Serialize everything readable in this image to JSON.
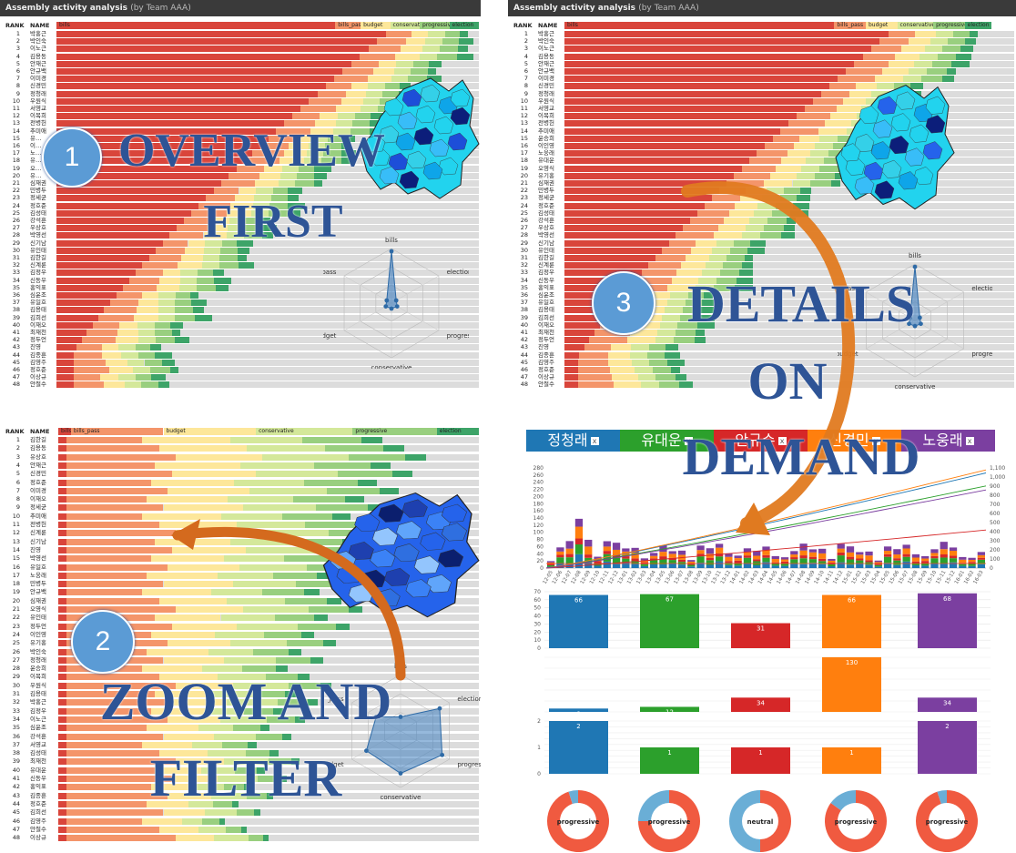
{
  "app": {
    "title": "Assembly activity analysis",
    "by": "(by Team AAA)"
  },
  "headers": {
    "rank": "RANK",
    "name": "NAME"
  },
  "metrics": [
    "bills",
    "bills_pass",
    "budget",
    "conservative",
    "progressive",
    "election"
  ],
  "metric_colors": {
    "bills": "#d9453b",
    "bills_pass": "#f4956a",
    "budget": "#fde79a",
    "conservative": "#d4e89a",
    "progressive": "#99cf7f",
    "election": "#3da468"
  },
  "steps": [
    {
      "num": "1",
      "lines": [
        "OVERVIEW",
        "FIRST"
      ]
    },
    {
      "num": "2",
      "lines": [
        "ZOOM AND",
        "FILTER"
      ]
    },
    {
      "num": "3",
      "lines": [
        "DETAILS",
        "ON",
        "DEMAND"
      ]
    }
  ],
  "panel1": {
    "names": [
      "박홍근",
      "박인숙",
      "이노근",
      "김용동",
      "안재근",
      "안규백",
      "이미경",
      "신경민",
      "정청래",
      "우원식",
      "서영교",
      "이목희",
      "전병헌",
      "추미애",
      "유…",
      "이…",
      "노…",
      "유…",
      "오…",
      "유…",
      "심재권",
      "민병두",
      "정세균",
      "정호준",
      "김성태",
      "강석훈",
      "우상호",
      "박영선",
      "신기남",
      "유인태",
      "김한길",
      "신계륜",
      "김정우",
      "신동우",
      "홍익표",
      "심윤조",
      "유일호",
      "김용태",
      "김희선",
      "이재오",
      "최재천",
      "정두언",
      "진영",
      "김종훈",
      "김영주",
      "정호준",
      "이상규",
      "안철수"
    ]
  },
  "panel3": {
    "names": [
      "박홍근",
      "박인숙",
      "이노근",
      "김용동",
      "안재근",
      "안규백",
      "이미경",
      "신경민",
      "정청래",
      "우원식",
      "서영교",
      "이목희",
      "전병헌",
      "추미애",
      "윤승희",
      "이인영",
      "노웅래",
      "유대운",
      "오영식",
      "유기홍",
      "심재권",
      "민병두",
      "정세균",
      "정호준",
      "김성태",
      "강석훈",
      "우상호",
      "박영선",
      "신기남",
      "유인태",
      "김한길",
      "신계륜",
      "김정우",
      "신동우",
      "홍익표",
      "심윤조",
      "유일호",
      "김용태",
      "김희선",
      "이재오",
      "최재천",
      "정두언",
      "진영",
      "김종훈",
      "김영주",
      "정호준",
      "이상규",
      "안철수"
    ]
  },
  "panel2": {
    "names": [
      "김한길",
      "김용동",
      "유상호",
      "안재근",
      "신경민",
      "정호준",
      "이미경",
      "이재오",
      "정세균",
      "추미애",
      "전병헌",
      "신계륜",
      "신기남",
      "진영",
      "박영선",
      "유일호",
      "노웅래",
      "민병두",
      "안규백",
      "심재권",
      "오영식",
      "유인태",
      "정두언",
      "이인영",
      "유기홍",
      "박인숙",
      "정청래",
      "윤승희",
      "이목희",
      "우원식",
      "김용태",
      "박홍근",
      "김정우",
      "이노근",
      "심윤조",
      "강석훈",
      "서영교",
      "김성태",
      "최재천",
      "유대운",
      "신동우",
      "홍익표",
      "김종훈",
      "정호준",
      "김희선",
      "김영주",
      "안철수",
      "이상규"
    ]
  },
  "radar": {
    "axes": [
      "bills",
      "election",
      "progressive",
      "conservative",
      "budget",
      "bills_pass"
    ],
    "overview_values": [
      0.95,
      0.1,
      0.12,
      0.1,
      0.12,
      0.1
    ],
    "zoom_values": [
      0.25,
      0.8,
      0.85,
      0.75,
      0.7,
      0.5
    ]
  },
  "details": {
    "tabs": [
      {
        "name": "정청래",
        "color": "#1f77b4"
      },
      {
        "name": "유대운",
        "color": "#2ca02c"
      },
      {
        "name": "안규수",
        "color": "#d62728"
      },
      {
        "name": "신경민",
        "color": "#ff7f0e"
      },
      {
        "name": "노웅래",
        "color": "#7b3fa0"
      }
    ],
    "stacked_y_ticks": [
      "280",
      "260",
      "240",
      "220",
      "200",
      "180",
      "160",
      "140",
      "120",
      "100",
      "80",
      "60",
      "40",
      "20",
      "0"
    ],
    "right_y_ticks": [
      "1,100",
      "1,000",
      "900",
      "800",
      "700",
      "600",
      "500",
      "400",
      "300",
      "200",
      "100",
      "0"
    ],
    "x_ticks": [
      "12-05",
      "12-06",
      "12-07",
      "12-08",
      "12-09",
      "12-10",
      "12-11",
      "12-12",
      "13-01",
      "13-02",
      "13-03",
      "13-04",
      "13-05",
      "13-06",
      "13-07",
      "13-08",
      "13-09",
      "13-10",
      "13-11",
      "13-12",
      "14-01",
      "14-02",
      "14-03",
      "14-04",
      "14-05",
      "14-06",
      "14-07",
      "14-08",
      "14-09",
      "14-10",
      "14-11",
      "14-12",
      "15-01",
      "15-02",
      "15-03",
      "15-04",
      "15-05",
      "15-06",
      "15-07",
      "15-08",
      "15-09",
      "15-10",
      "15-11",
      "15-12",
      "16-01",
      "16-02",
      "16-03"
    ],
    "bar_row1": {
      "ticks": [
        "70",
        "60",
        "50",
        "40",
        "30",
        "20",
        "10",
        "0"
      ],
      "values": [
        66,
        67,
        31,
        66,
        68
      ]
    },
    "bar_row2": {
      "values": [
        8,
        12,
        34,
        130,
        34
      ]
    },
    "bar_row3": {
      "ticks": [
        "2",
        "1",
        "0"
      ],
      "values": [
        2,
        1,
        1,
        1,
        2
      ]
    },
    "donuts": [
      {
        "label": "progressive",
        "share": 0.95
      },
      {
        "label": "progressive",
        "share": 0.75
      },
      {
        "label": "neutral",
        "share": 0.5
      },
      {
        "label": "progressive",
        "share": 0.85
      },
      {
        "label": "progressive",
        "share": 0.95
      }
    ]
  }
}
